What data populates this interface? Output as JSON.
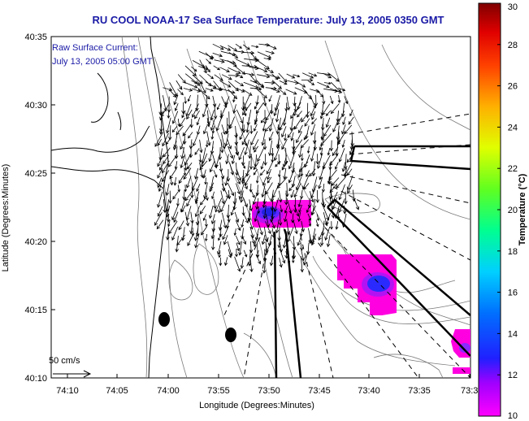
{
  "chart_data": {
    "type": "map-vector-field",
    "title": "RU COOL  NOAA-17  Sea Surface Temperature:  July 13, 2005 0350 GMT",
    "annotation_lines": [
      "Raw Surface Current:",
      "July 13, 2005 05:00 GMT"
    ],
    "xlabel": "Longitude (Degrees:Minutes)",
    "ylabel": "Latitude (Degrees:Minutes)",
    "x_ticks": [
      "74:10",
      "74:05",
      "74:00",
      "73:55",
      "73:50",
      "73:45",
      "73:40",
      "73:35",
      "73:3"
    ],
    "y_ticks": [
      "40:10",
      "40:15",
      "40:20",
      "40:25",
      "40:30",
      "40:35"
    ],
    "xlim_minutes_west": [
      4450,
      4410
    ],
    "ylim_minutes_north": [
      2410,
      2435
    ],
    "scale_label": "50 cm/s",
    "colorbar": {
      "label": "Temperature (°C)",
      "range": [
        10,
        30
      ],
      "ticks": [
        "10",
        "12",
        "14",
        "16",
        "18",
        "20",
        "22",
        "24",
        "26",
        "28",
        "30"
      ]
    },
    "sst_patches": [
      {
        "name": "patch-north",
        "lon_min_w": 4430.5,
        "lat_min_n": 2422.0,
        "temp_C": 10.5,
        "core_temp_C": 12.0
      },
      {
        "name": "patch-east",
        "lon_min_w": 4420.5,
        "lat_min_n": 2417.5,
        "temp_C": 10.3,
        "core_temp_C": 12.2
      },
      {
        "name": "patch-southeast",
        "lon_min_w": 4410.6,
        "lat_min_n": 2412.5,
        "temp_C": 10.4,
        "core_temp_C": 12.0
      }
    ],
    "markers": [
      {
        "name": "marker-west",
        "lon_min_w": 4439.0,
        "lat_min_n": 2414.6
      },
      {
        "name": "marker-east",
        "lon_min_w": 4432.3,
        "lat_min_n": 2413.4
      }
    ]
  },
  "colors": {
    "title_text": "#1a1aa6",
    "vectors": "#000000",
    "coast": "#000000",
    "bathymetry": "#7a7a7a",
    "patch_magenta": "#ff00e0",
    "patch_core": "#3030ff",
    "colorbar_stops": [
      "#ff00ff",
      "#8000ff",
      "#0000ff",
      "#0080ff",
      "#00ffff",
      "#00ff80",
      "#80ff00",
      "#ffff00",
      "#ff8000",
      "#ff0000",
      "#800000"
    ]
  }
}
